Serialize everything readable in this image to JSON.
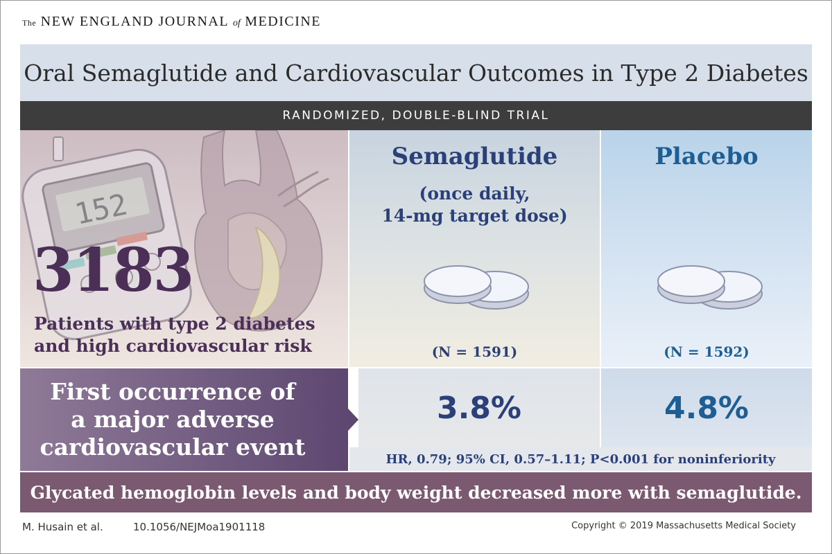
{
  "journal": {
    "the": "The",
    "name_part1": "NEW ENGLAND JOURNAL",
    "of": "of",
    "name_part2": "MEDICINE"
  },
  "title": "Oral Semaglutide and Cardiovascular Outcomes in Type 2 Diabetes",
  "trial_type": "RANDOMIZED, DOUBLE-BLIND TRIAL",
  "patients": {
    "count": "3183",
    "description_line1": "Patients with type 2 diabetes",
    "description_line2": "and high cardiovascular risk",
    "meter_reading": "152"
  },
  "arms": {
    "semaglutide": {
      "name": "Semaglutide",
      "dose": "(once daily,\n14-mg target dose)",
      "n": "(N = 1591)",
      "outcome": "3.8%"
    },
    "placebo": {
      "name": "Placebo",
      "n": "(N = 1592)",
      "outcome": "4.8%"
    }
  },
  "outcome_label": "First occurrence of\na major adverse\ncardiovascular event",
  "hazard_ratio": "HR, 0.79; 95% CI, 0.57–1.11; P<0.001 for noninferiority",
  "summary": "Glycated hemoglobin levels and body weight decreased more with semaglutide.",
  "footer": {
    "authors": "M. Husain et al.",
    "doi": "10.1056/NEJMoa1901118",
    "copyright": "Copyright © 2019 Massachusetts Medical Society"
  },
  "colors": {
    "semaglutide": "#2b3f78",
    "placebo": "#1d5f95",
    "patients": "#4c2f57",
    "summary_band": "#7b5970"
  }
}
